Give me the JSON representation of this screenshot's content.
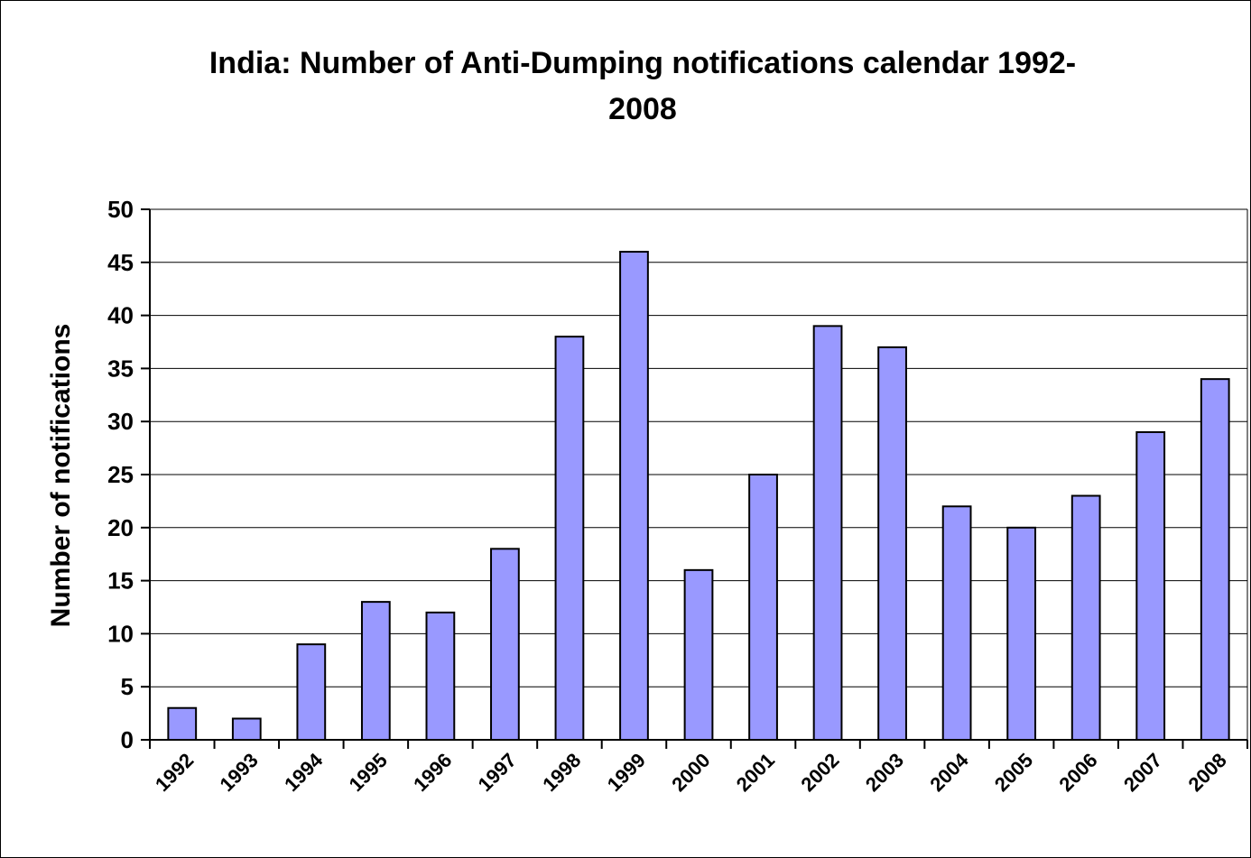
{
  "chart_data": {
    "type": "bar",
    "title_lines": [
      "India: Number of Anti-Dumping notifications calendar 1992-",
      "2008"
    ],
    "ylabel": "Number of notifications",
    "xlabel": "",
    "categories": [
      "1992",
      "1993",
      "1994",
      "1995",
      "1996",
      "1997",
      "1998",
      "1999",
      "2000",
      "2001",
      "2002",
      "2003",
      "2004",
      "2005",
      "2006",
      "2007",
      "2008"
    ],
    "values": [
      3,
      2,
      9,
      13,
      12,
      18,
      38,
      46,
      16,
      25,
      39,
      37,
      22,
      20,
      23,
      29,
      34
    ],
    "ylim": [
      0,
      50
    ],
    "yticks": [
      0,
      5,
      10,
      15,
      20,
      25,
      30,
      35,
      40,
      45,
      50
    ],
    "grid": true,
    "legend": "none",
    "bar_color": "#9999ff",
    "bar_stroke": "#000000"
  }
}
